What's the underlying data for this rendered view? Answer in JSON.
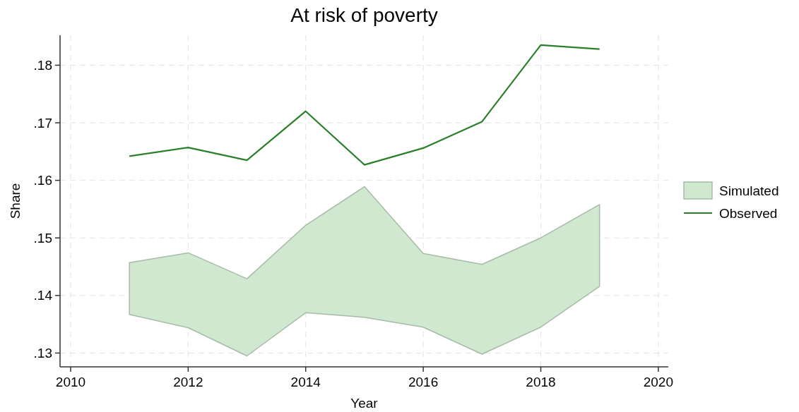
{
  "chart_data": {
    "type": "line",
    "title": "At risk of poverty",
    "xlabel": "Year",
    "ylabel": "Share",
    "x": [
      2011,
      2012,
      2013,
      2014,
      2015,
      2016,
      2017,
      2018,
      2019
    ],
    "series": [
      {
        "name": "Simulated",
        "color": "#cfe8cf",
        "values": [
          null,
          null,
          null,
          null,
          null,
          null,
          null,
          null,
          null
        ],
        "lower": [
          0.1367,
          0.1344,
          0.1295,
          0.137,
          0.1362,
          0.1345,
          0.1298,
          0.1345,
          0.1416
        ],
        "upper": [
          0.1457,
          0.1474,
          0.1429,
          0.1522,
          0.1589,
          0.1473,
          0.1454,
          0.15,
          0.1558
        ]
      },
      {
        "name": "Observed",
        "color": "#2a7f2a",
        "values": [
          0.1642,
          0.1657,
          0.1635,
          0.172,
          0.1627,
          0.1656,
          0.1702,
          0.1835,
          0.1828
        ]
      }
    ],
    "xlim": [
      2009.82,
      2020.17
    ],
    "xticks": [
      2010,
      2012,
      2014,
      2016,
      2018,
      2020
    ],
    "ylim": [
      0.1276,
      0.1852
    ],
    "yticks": [
      {
        "value": 0.13,
        "label": ".13"
      },
      {
        "value": 0.14,
        "label": ".14"
      },
      {
        "value": 0.15,
        "label": ".15"
      },
      {
        "value": 0.16,
        "label": ".16"
      },
      {
        "value": 0.17,
        "label": ".17"
      },
      {
        "value": 0.18,
        "label": ".18"
      }
    ],
    "grid": true,
    "legend": "right",
    "line_style": "solid"
  }
}
